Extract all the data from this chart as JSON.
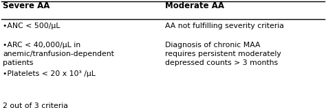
{
  "col1_header": "Severe AA",
  "col2_header": "Moderate AA",
  "col1_items": [
    "•ANC < 500/μL",
    "•ARC < 40,000/μL in\nanemic/tranfusion-dependent\npatients",
    "•Platelets < 20 x 10³ /μL",
    "2 out of 3 criteria"
  ],
  "col2_item1": "AA not fulfilling severity criteria",
  "col2_item2": "Diagnosis of chronic MAA\nrequires persistent moderately\ndepressed counts > 3 months",
  "bg_color": "#ffffff",
  "header_color": "#000000",
  "text_color": "#000000",
  "line_color": "#000000",
  "font_size": 7.8,
  "header_font_size": 8.5,
  "col_split": 0.495,
  "fig_width": 4.74,
  "fig_height": 1.58,
  "dpi": 100
}
